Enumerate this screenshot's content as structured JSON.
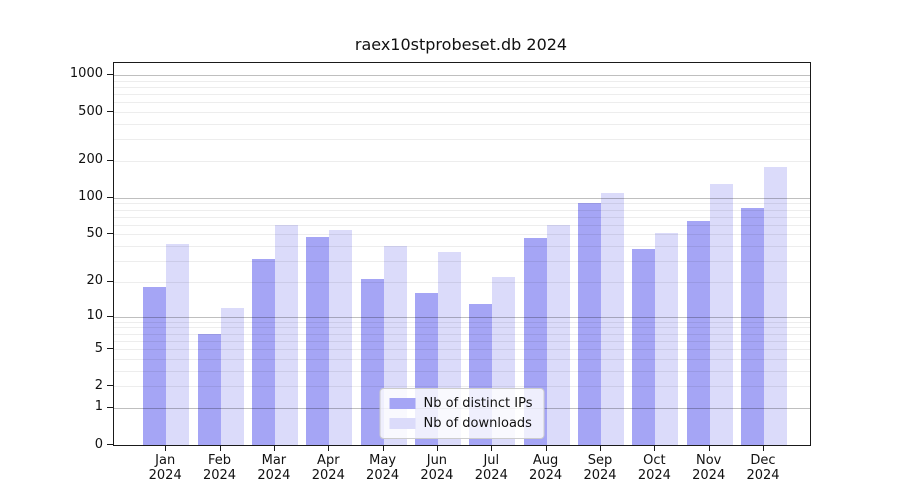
{
  "chart_data": {
    "type": "bar",
    "title": "raex10stprobeset.db 2024",
    "categories": [
      "Jan",
      "Feb",
      "Mar",
      "Apr",
      "May",
      "Jun",
      "Jul",
      "Aug",
      "Sep",
      "Oct",
      "Nov",
      "Dec"
    ],
    "year_label": "2024",
    "series": [
      {
        "name": "Nb of distinct IPs",
        "color": "#a5a5f5",
        "values": [
          18,
          7,
          31,
          48,
          21,
          16,
          13,
          47,
          90,
          38,
          64,
          83
        ]
      },
      {
        "name": "Nb of downloads",
        "color": "#dbdbfa",
        "values": [
          42,
          12,
          60,
          54,
          40,
          36,
          22,
          60,
          110,
          51,
          130,
          180
        ]
      }
    ],
    "xlabel": "",
    "ylabel": "",
    "y_ticks": [
      0,
      1,
      2,
      5,
      10,
      20,
      50,
      100,
      200,
      500,
      1000
    ],
    "y_scale": "log1p",
    "ylim": [
      0,
      1250
    ],
    "grid": "horizontal, log decades major + intermediate minor",
    "legend_position": "lower center"
  }
}
